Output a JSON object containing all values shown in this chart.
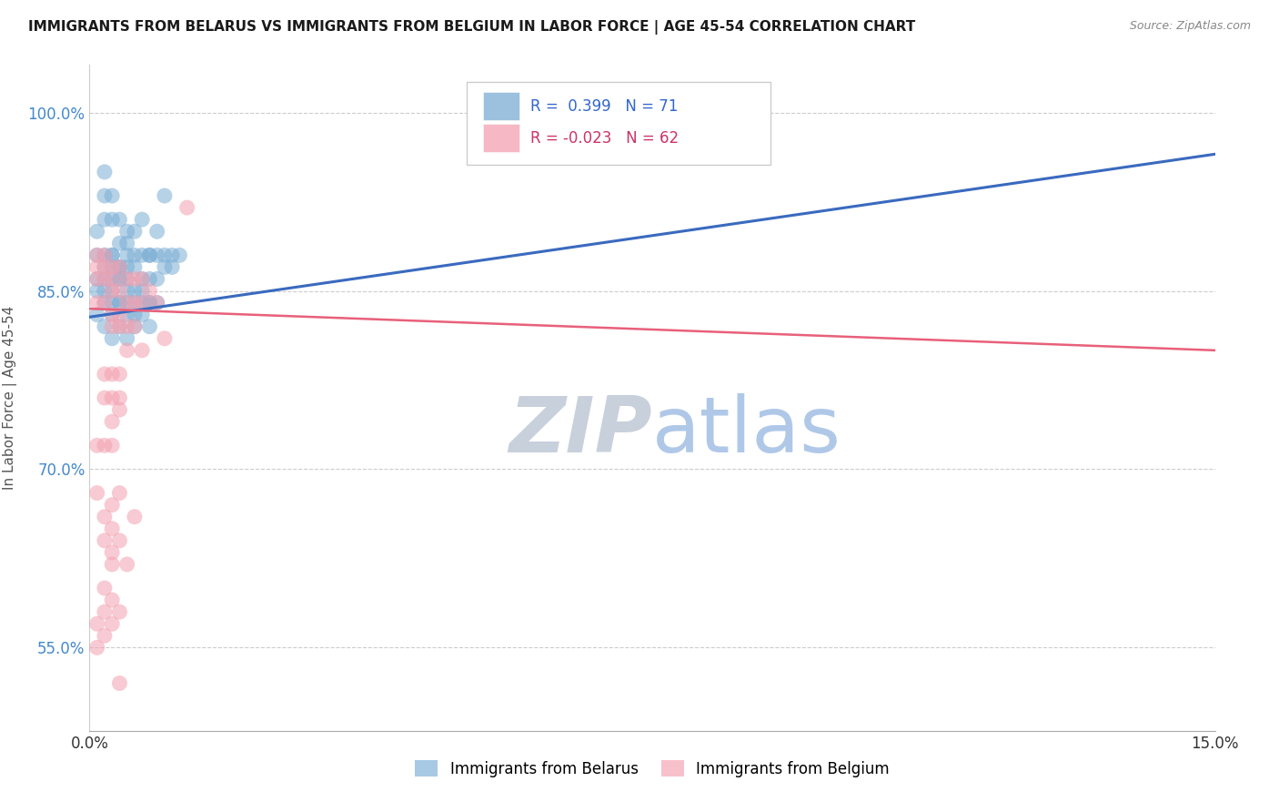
{
  "title": "IMMIGRANTS FROM BELARUS VS IMMIGRANTS FROM BELGIUM IN LABOR FORCE | AGE 45-54 CORRELATION CHART",
  "source": "Source: ZipAtlas.com",
  "ylabel_text": "In Labor Force | Age 45-54",
  "xlim": [
    0.0,
    0.15
  ],
  "ylim": [
    0.48,
    1.04
  ],
  "ytick_labels": [
    "55.0%",
    "70.0%",
    "85.0%",
    "100.0%"
  ],
  "yticks": [
    0.55,
    0.7,
    0.85,
    1.0
  ],
  "grid_color": "#cccccc",
  "background_color": "#ffffff",
  "watermark_color": "#ccd9ee",
  "blue_color": "#7aadd4",
  "pink_color": "#f4a0b0",
  "blue_line_color": "#3a6abf",
  "pink_line_color": "#e8607a",
  "legend_r_blue": " 0.399",
  "legend_n_blue": "71",
  "legend_r_pink": "-0.023",
  "legend_n_pink": "62",
  "legend_label_blue": "Immigrants from Belarus",
  "legend_label_pink": "Immigrants from Belgium",
  "blue_line_x0": 0.0,
  "blue_line_y0": 0.828,
  "blue_line_x1": 0.15,
  "blue_line_y1": 0.965,
  "pink_line_x0": 0.0,
  "pink_line_y0": 0.835,
  "pink_line_x1": 0.15,
  "pink_line_y1": 0.8,
  "blue_x": [
    0.001,
    0.001,
    0.001,
    0.002,
    0.002,
    0.002,
    0.002,
    0.002,
    0.003,
    0.003,
    0.003,
    0.003,
    0.003,
    0.003,
    0.004,
    0.004,
    0.004,
    0.004,
    0.004,
    0.005,
    0.005,
    0.005,
    0.005,
    0.006,
    0.006,
    0.006,
    0.006,
    0.007,
    0.007,
    0.007,
    0.008,
    0.008,
    0.008,
    0.009,
    0.009,
    0.01,
    0.01,
    0.011,
    0.011,
    0.012,
    0.002,
    0.002,
    0.003,
    0.003,
    0.003,
    0.004,
    0.004,
    0.004,
    0.005,
    0.005,
    0.005,
    0.006,
    0.006,
    0.007,
    0.007,
    0.008,
    0.008,
    0.009,
    0.001,
    0.001,
    0.002,
    0.002,
    0.003,
    0.004,
    0.005,
    0.005,
    0.006,
    0.007,
    0.008,
    0.009,
    0.01
  ],
  "blue_y": [
    0.9,
    0.88,
    0.86,
    0.95,
    0.93,
    0.91,
    0.88,
    0.86,
    0.93,
    0.91,
    0.88,
    0.87,
    0.86,
    0.84,
    0.91,
    0.89,
    0.87,
    0.86,
    0.84,
    0.9,
    0.88,
    0.86,
    0.84,
    0.88,
    0.87,
    0.85,
    0.83,
    0.88,
    0.86,
    0.84,
    0.88,
    0.86,
    0.84,
    0.88,
    0.86,
    0.88,
    0.87,
    0.88,
    0.87,
    0.88,
    0.84,
    0.82,
    0.85,
    0.83,
    0.81,
    0.86,
    0.84,
    0.82,
    0.85,
    0.83,
    0.81,
    0.84,
    0.82,
    0.85,
    0.83,
    0.84,
    0.82,
    0.84,
    0.85,
    0.83,
    0.87,
    0.85,
    0.88,
    0.87,
    0.89,
    0.87,
    0.9,
    0.91,
    0.88,
    0.9,
    0.93
  ],
  "pink_x": [
    0.001,
    0.001,
    0.001,
    0.001,
    0.002,
    0.002,
    0.002,
    0.002,
    0.003,
    0.003,
    0.003,
    0.003,
    0.003,
    0.004,
    0.004,
    0.004,
    0.004,
    0.005,
    0.005,
    0.005,
    0.006,
    0.006,
    0.006,
    0.007,
    0.007,
    0.008,
    0.009,
    0.01,
    0.002,
    0.002,
    0.003,
    0.003,
    0.004,
    0.004,
    0.001,
    0.001,
    0.002,
    0.003,
    0.003,
    0.004,
    0.002,
    0.002,
    0.003,
    0.003,
    0.004,
    0.002,
    0.003,
    0.001,
    0.002,
    0.003,
    0.003,
    0.004,
    0.001,
    0.002,
    0.003,
    0.004,
    0.005,
    0.006,
    0.004,
    0.007,
    0.013,
    0.005
  ],
  "pink_y": [
    0.88,
    0.87,
    0.86,
    0.84,
    0.88,
    0.87,
    0.86,
    0.84,
    0.87,
    0.86,
    0.85,
    0.83,
    0.82,
    0.87,
    0.85,
    0.83,
    0.82,
    0.86,
    0.84,
    0.82,
    0.86,
    0.84,
    0.82,
    0.86,
    0.84,
    0.85,
    0.84,
    0.81,
    0.78,
    0.76,
    0.78,
    0.76,
    0.78,
    0.76,
    0.72,
    0.68,
    0.72,
    0.74,
    0.72,
    0.75,
    0.66,
    0.64,
    0.67,
    0.65,
    0.68,
    0.6,
    0.62,
    0.57,
    0.58,
    0.59,
    0.57,
    0.58,
    0.55,
    0.56,
    0.63,
    0.64,
    0.62,
    0.66,
    0.52,
    0.8,
    0.92,
    0.8
  ]
}
